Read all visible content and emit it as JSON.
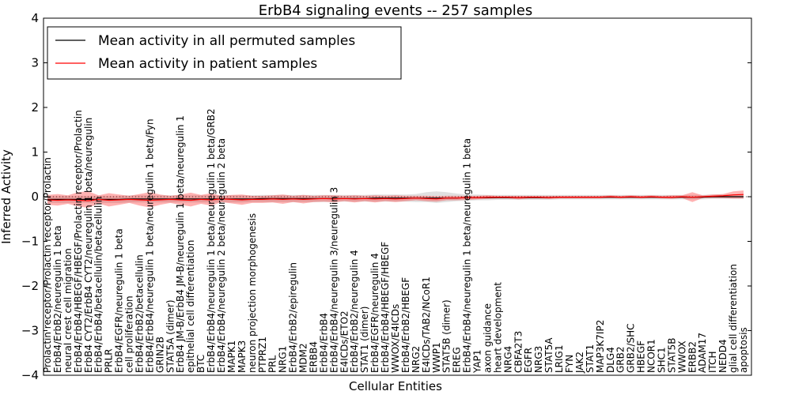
{
  "chart_data": {
    "type": "line",
    "title": "ErbB4 signaling events -- 257 samples",
    "xlabel": "Cellular Entities",
    "ylabel": "Inferred Activity",
    "ylim": [
      -4,
      4
    ],
    "yticks": [
      -4,
      -3,
      -2,
      -1,
      0,
      1,
      2,
      3,
      4
    ],
    "ytick_labels": [
      "−4",
      "−3",
      "−2",
      "−1",
      "0",
      "1",
      "2",
      "3",
      "4"
    ],
    "grid": false,
    "legend_position": "top-left",
    "categories": [
      "Prolactin receptor/Prolactin receptor/Prolactin",
      "ErbB4/ErbB2/neuregulin 1 beta",
      "neural crest cell migration",
      "ErbB4/ErbB4/HBEGF/HBEGF/Prolactin receptor/Prolactin",
      "ErbB4 CYT2/ErbB4 CYT2/neuregulin 1 beta/neuregulin",
      "ErbB4/ErbB4/betacellulin/betacellulin",
      "PRLR",
      "ErbB4/EGFR/neuregulin 1 beta",
      "cell proliferation",
      "ErbB4/ErbB2/betacellulin",
      "ErbB4/ErbB4/neuregulin 1 beta/neuregulin 1 beta/Fyn",
      "GRIN2B",
      "STAT5A (dimer)",
      "ErbB4 JM-B/ErbB4 JM-B/neuregulin 1 beta/neuregulin 1",
      "epithelial cell differentiation",
      "BTC",
      "ErbB4/ErbB4/neuregulin 1 beta/neuregulin 1 beta/GRB2",
      "ErbB4/ErbB4/neuregulin 2 beta/neuregulin 2 beta",
      "MAPK1",
      "MAPK3",
      "neuron projection morphogenesis",
      "PTPRZ1",
      "PRL",
      "NRG1",
      "ErbB4/ErbB2/epiregulin",
      "MDM2",
      "ERBB4",
      "ErbB4/ErbB4",
      "ErbB4/ErbB4/neuregulin 3/neuregulin 3",
      "E4ICDs/ETO2",
      "ErbB4/ErbB2/neuregulin 4",
      "STAT1 (dimer)",
      "ErbB4/EGFR/neuregulin 4",
      "ErbB4/ErbB4/HBEGF/HBEGF",
      "WWOX/E4ICDs",
      "ErbB4/ErbB2/HBEGF",
      "NRG2",
      "E4ICDs/TAB2/NCoR1",
      "WWP1",
      "STAT5B (dimer)",
      "EREG",
      "ErbB4/ErbB4/neuregulin 1 beta/neuregulin 1 beta",
      "YAP1",
      "axon guidance",
      "heart development",
      "NRG4",
      "CBFA2T3",
      "EGFR",
      "NRG3",
      "STAT5A",
      "LRIG1",
      "FYN",
      "JAK2",
      "STAT1",
      "MAP3K7IP2",
      "DLG4",
      "GRB2",
      "GRB2/SHC",
      "HBEGF",
      "NCOR1",
      "SHC1",
      "STAT5B",
      "WWOX",
      "ERBB2",
      "ADAM17",
      "ITCH",
      "NEDD4",
      "glial cell differentiation",
      "apoptosis"
    ],
    "series": [
      {
        "name": "Mean activity in all permuted samples",
        "color": "#000000",
        "values": [
          -0.06,
          -0.06,
          -0.06,
          -0.06,
          -0.06,
          -0.06,
          -0.06,
          -0.06,
          -0.05,
          -0.05,
          -0.05,
          -0.05,
          -0.05,
          -0.05,
          -0.05,
          -0.05,
          -0.05,
          -0.05,
          -0.05,
          -0.05,
          -0.05,
          -0.04,
          -0.04,
          -0.04,
          -0.04,
          -0.04,
          -0.04,
          -0.04,
          -0.04,
          -0.04,
          -0.04,
          -0.04,
          -0.03,
          -0.03,
          -0.03,
          -0.03,
          -0.03,
          -0.03,
          -0.03,
          -0.03,
          -0.03,
          -0.02,
          -0.02,
          -0.02,
          -0.02,
          -0.02,
          -0.02,
          -0.02,
          -0.02,
          -0.02,
          -0.01,
          -0.01,
          -0.01,
          -0.01,
          -0.01,
          -0.01,
          -0.01,
          -0.01,
          -0.01,
          -0.01,
          -0.01,
          -0.01,
          -0.01,
          -0.01,
          -0.01,
          0.0,
          0.0,
          0.0,
          0.0
        ],
        "band_low": [
          -0.14,
          -0.14,
          -0.14,
          -0.14,
          -0.14,
          -0.14,
          -0.14,
          -0.14,
          -0.13,
          -0.13,
          -0.13,
          -0.13,
          -0.13,
          -0.13,
          -0.13,
          -0.13,
          -0.13,
          -0.13,
          -0.13,
          -0.13,
          -0.12,
          -0.12,
          -0.12,
          -0.12,
          -0.12,
          -0.12,
          -0.12,
          -0.12,
          -0.11,
          -0.11,
          -0.11,
          -0.11,
          -0.11,
          -0.11,
          -0.11,
          -0.11,
          -0.12,
          -0.12,
          -0.14,
          -0.12,
          -0.1,
          -0.09,
          -0.08,
          -0.08,
          -0.07,
          -0.07,
          -0.07,
          -0.07,
          -0.07,
          -0.07,
          -0.06,
          -0.06,
          -0.06,
          -0.06,
          -0.06,
          -0.06,
          -0.06,
          -0.06,
          -0.06,
          -0.06,
          -0.06,
          -0.06,
          -0.06,
          -0.06,
          -0.06,
          -0.05,
          -0.05,
          -0.05,
          -0.05
        ],
        "band_high": [
          0.02,
          0.02,
          0.02,
          0.02,
          0.02,
          0.02,
          0.02,
          0.02,
          0.03,
          0.03,
          0.03,
          0.03,
          0.03,
          0.03,
          0.03,
          0.03,
          0.03,
          0.03,
          0.03,
          0.03,
          0.03,
          0.04,
          0.04,
          0.04,
          0.04,
          0.04,
          0.04,
          0.04,
          0.04,
          0.04,
          0.04,
          0.04,
          0.05,
          0.05,
          0.05,
          0.05,
          0.06,
          0.1,
          0.12,
          0.1,
          0.07,
          0.05,
          0.05,
          0.04,
          0.04,
          0.04,
          0.04,
          0.04,
          0.04,
          0.04,
          0.04,
          0.04,
          0.04,
          0.04,
          0.04,
          0.04,
          0.04,
          0.04,
          0.04,
          0.04,
          0.04,
          0.04,
          0.04,
          0.04,
          0.04,
          0.05,
          0.05,
          0.05,
          0.05
        ]
      },
      {
        "name": "Mean activity in patient samples",
        "color": "#ff0000",
        "values": [
          -0.07,
          -0.08,
          -0.07,
          -0.08,
          -0.09,
          -0.06,
          -0.08,
          -0.07,
          -0.06,
          -0.07,
          -0.08,
          -0.07,
          -0.06,
          -0.07,
          -0.08,
          -0.06,
          -0.07,
          -0.05,
          -0.06,
          -0.07,
          -0.06,
          -0.06,
          -0.05,
          -0.06,
          -0.05,
          -0.06,
          -0.05,
          -0.04,
          -0.05,
          -0.04,
          -0.05,
          -0.04,
          -0.05,
          -0.04,
          -0.05,
          -0.04,
          -0.03,
          -0.04,
          -0.05,
          -0.03,
          -0.03,
          -0.02,
          -0.02,
          -0.01,
          -0.01,
          -0.01,
          -0.02,
          -0.01,
          -0.01,
          -0.02,
          -0.01,
          -0.01,
          -0.01,
          -0.01,
          -0.01,
          0.0,
          -0.01,
          0.0,
          -0.01,
          0.0,
          -0.01,
          -0.01,
          0.0,
          -0.01,
          0.0,
          0.01,
          0.02,
          0.04,
          0.05
        ],
        "band_low": [
          -0.18,
          -0.2,
          -0.16,
          -0.22,
          -0.25,
          -0.15,
          -0.22,
          -0.18,
          -0.14,
          -0.2,
          -0.24,
          -0.18,
          -0.14,
          -0.18,
          -0.22,
          -0.16,
          -0.2,
          -0.12,
          -0.15,
          -0.18,
          -0.14,
          -0.14,
          -0.13,
          -0.16,
          -0.12,
          -0.15,
          -0.12,
          -0.11,
          -0.13,
          -0.1,
          -0.13,
          -0.1,
          -0.13,
          -0.1,
          -0.12,
          -0.1,
          -0.08,
          -0.1,
          -0.11,
          -0.08,
          -0.08,
          -0.07,
          -0.06,
          -0.05,
          -0.04,
          -0.04,
          -0.06,
          -0.04,
          -0.04,
          -0.05,
          -0.04,
          -0.04,
          -0.04,
          -0.04,
          -0.04,
          -0.03,
          -0.04,
          -0.03,
          -0.04,
          -0.03,
          -0.04,
          -0.05,
          -0.03,
          -0.12,
          -0.03,
          -0.03,
          -0.03,
          -0.04,
          -0.04
        ],
        "band_high": [
          0.04,
          0.06,
          0.03,
          0.1,
          0.12,
          0.03,
          0.08,
          0.05,
          0.02,
          0.06,
          0.1,
          0.05,
          0.02,
          0.05,
          0.09,
          0.04,
          0.08,
          0.02,
          0.04,
          0.05,
          0.02,
          0.02,
          0.03,
          0.05,
          0.02,
          0.04,
          0.02,
          0.03,
          0.03,
          0.02,
          0.03,
          0.02,
          0.03,
          0.02,
          0.03,
          0.02,
          0.02,
          0.02,
          0.01,
          0.02,
          0.02,
          0.02,
          0.02,
          0.03,
          0.02,
          0.02,
          0.02,
          0.02,
          0.02,
          0.02,
          0.02,
          0.02,
          0.02,
          0.02,
          0.02,
          0.03,
          0.02,
          0.03,
          0.02,
          0.03,
          0.02,
          0.03,
          0.03,
          0.1,
          0.03,
          0.05,
          0.06,
          0.12,
          0.14
        ]
      }
    ]
  }
}
